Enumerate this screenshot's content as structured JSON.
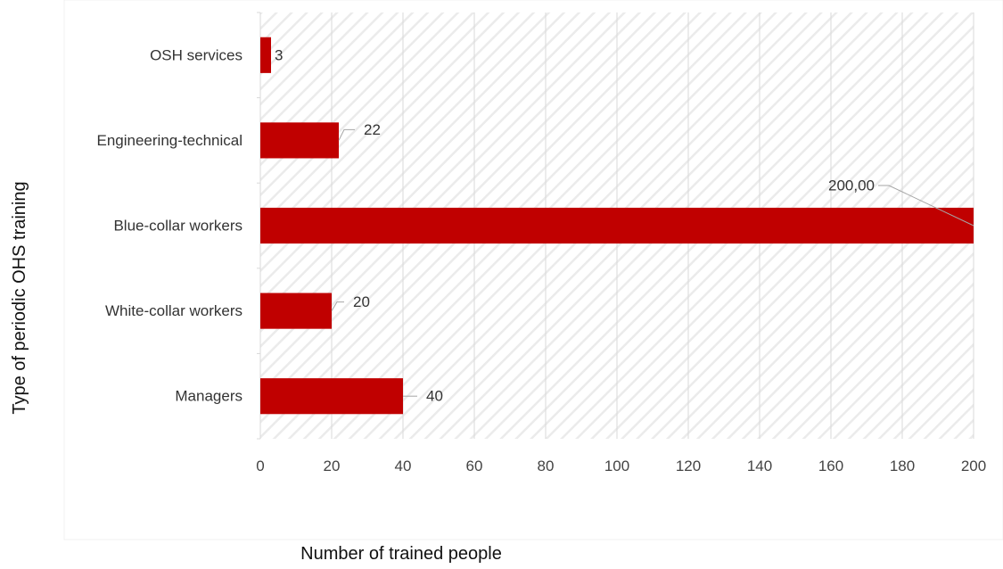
{
  "chart_data": {
    "type": "bar",
    "orientation": "horizontal",
    "categories": [
      "OSH services",
      "Engineering-technical",
      "Blue-collar workers",
      "White-collar workers",
      "Managers"
    ],
    "values": [
      3,
      22,
      200,
      20,
      40
    ],
    "data_labels": [
      "3",
      "22",
      "200,00",
      "20",
      "40"
    ],
    "xlabel": "Number of trained people",
    "ylabel": "Type of periodic OHS training",
    "xlim": [
      0,
      200
    ],
    "xticks": [
      0,
      20,
      40,
      60,
      80,
      100,
      120,
      140,
      160,
      180,
      200
    ],
    "grid": "vertical",
    "colors": {
      "bar": "#c00000",
      "grid": "#d9d9d9",
      "hatch": "#ededed",
      "leader": "#a6a6a6"
    }
  }
}
